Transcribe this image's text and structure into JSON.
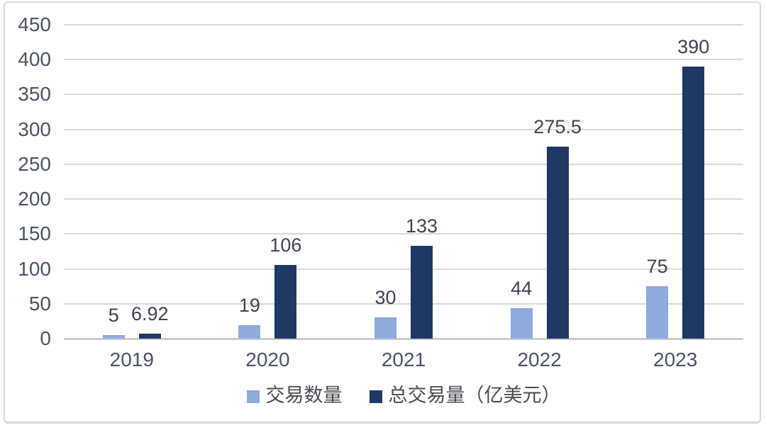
{
  "chart_data": {
    "type": "bar",
    "categories": [
      "2019",
      "2020",
      "2021",
      "2022",
      "2023"
    ],
    "series": [
      {
        "name": "交易数量",
        "color": "#8FAADC",
        "values": [
          5,
          19,
          30,
          44,
          75
        ],
        "labels": [
          "5",
          "19",
          "30",
          "44",
          "75"
        ]
      },
      {
        "name": "总交易量（亿美元）",
        "color": "#203864",
        "values": [
          6.92,
          106,
          133,
          275.5,
          390
        ],
        "labels": [
          "6.92",
          "106",
          "133",
          "275.5",
          "390"
        ]
      }
    ],
    "title": "",
    "xlabel": "",
    "ylabel": "",
    "ylim": [
      0,
      450
    ],
    "ytick_step": 50,
    "yticks": [
      "0",
      "50",
      "100",
      "150",
      "200",
      "250",
      "300",
      "350",
      "400",
      "450"
    ],
    "grid": true,
    "legend_position": "bottom",
    "colors": {
      "gridline": "#d9d9d9",
      "axis_line": "#cccaca",
      "tick_text": "#4a5464",
      "data_label_text": "#3d4452",
      "frame_border": "#d9d9d9",
      "background": "#ffffff"
    }
  }
}
